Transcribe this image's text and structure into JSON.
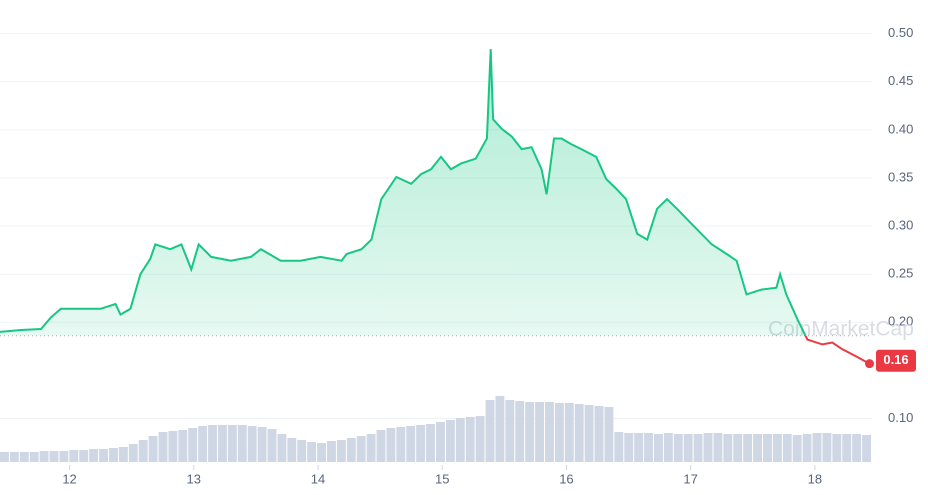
{
  "chart_data": {
    "type": "line",
    "watermark": "CoinMarketCap",
    "x": [
      11.44,
      11.61,
      11.77,
      11.85,
      11.93,
      12.09,
      12.25,
      12.37,
      12.41,
      12.49,
      12.57,
      12.65,
      12.69,
      12.81,
      12.9,
      12.98,
      13.04,
      13.14,
      13.3,
      13.46,
      13.54,
      13.7,
      13.86,
      14.02,
      14.19,
      14.23,
      14.35,
      14.43,
      14.51,
      14.63,
      14.75,
      14.83,
      14.91,
      14.99,
      15.07,
      15.15,
      15.27,
      15.36,
      15.39,
      15.41,
      15.48,
      15.56,
      15.64,
      15.72,
      15.8,
      15.84,
      15.9,
      15.96,
      16.04,
      16.12,
      16.24,
      16.32,
      16.4,
      16.48,
      16.57,
      16.65,
      16.73,
      16.81,
      16.89,
      17.01,
      17.17,
      17.29,
      17.37,
      17.45,
      17.57,
      17.69,
      17.72,
      17.77,
      17.86,
      17.94,
      18.06,
      18.14,
      18.22,
      18.34,
      18.44
    ],
    "series": [
      {
        "color": "#16c784",
        "down_color": "#ea3943",
        "values": [
          0.19,
          0.192,
          0.193,
          0.205,
          0.214,
          0.214,
          0.214,
          0.219,
          0.208,
          0.214,
          0.25,
          0.266,
          0.281,
          0.276,
          0.281,
          0.255,
          0.281,
          0.268,
          0.264,
          0.268,
          0.276,
          0.264,
          0.264,
          0.268,
          0.264,
          0.271,
          0.276,
          0.286,
          0.328,
          0.351,
          0.344,
          0.354,
          0.359,
          0.372,
          0.359,
          0.365,
          0.37,
          0.391,
          0.484,
          0.411,
          0.401,
          0.393,
          0.38,
          0.382,
          0.359,
          0.333,
          0.391,
          0.391,
          0.385,
          0.38,
          0.372,
          0.349,
          0.339,
          0.328,
          0.292,
          0.286,
          0.318,
          0.328,
          0.318,
          0.302,
          0.281,
          0.271,
          0.264,
          0.229,
          0.234,
          0.236,
          0.25,
          0.229,
          0.203,
          0.182,
          0.177,
          0.179,
          0.172,
          0.164,
          0.157
        ]
      }
    ],
    "baseline": 0.186,
    "last_price": 0.16,
    "xlim": [
      11.44,
      18.46
    ],
    "xticks": [
      12,
      13,
      14,
      15,
      16,
      17,
      18
    ],
    "ylim": [
      0.06,
      0.535
    ],
    "yticks": [
      {
        "value": 0.1,
        "label": "0.10"
      },
      {
        "value": 0.2,
        "label": "0.20"
      },
      0.25,
      {
        "value": 0.3,
        "label": "0.30"
      },
      0.35,
      {
        "value": 0.4,
        "label": "0.40"
      },
      0.45,
      {
        "value": 0.5,
        "label": "0.50"
      }
    ],
    "grid": true,
    "volume": {
      "color": "#cfd6e4",
      "lim": [
        0,
        100
      ],
      "values": [
        10,
        10,
        10,
        10,
        11,
        11,
        11,
        12,
        12,
        13,
        13,
        14,
        15,
        18,
        22,
        26,
        30,
        31,
        32,
        34,
        36,
        37,
        37,
        37,
        37,
        36,
        35,
        33,
        28,
        24,
        22,
        20,
        19,
        21,
        22,
        24,
        26,
        28,
        32,
        34,
        35,
        36,
        37,
        38,
        40,
        42,
        44,
        45,
        46,
        62,
        66,
        62,
        61,
        60,
        60,
        60,
        59,
        59,
        58,
        57,
        56,
        55,
        30,
        29,
        29,
        29,
        28,
        29,
        28,
        28,
        28,
        29,
        29,
        28,
        28,
        28,
        28,
        28,
        28,
        28,
        27,
        28,
        29,
        29,
        28,
        28,
        28,
        27
      ]
    }
  }
}
